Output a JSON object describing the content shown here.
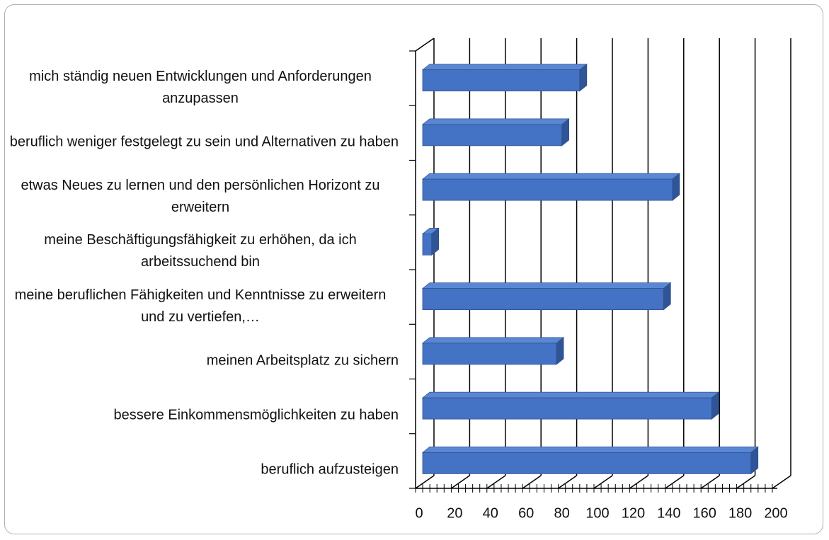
{
  "chart_data": {
    "type": "bar3d_horizontal",
    "categories": [
      "mich ständig neuen Entwicklungen und Anforderungen anzupassen",
      "beruflich weniger festgelegt zu sein und Alternativen zu haben",
      "etwas Neues zu lernen und den persönlichen Horizont zu erweitern",
      "meine Beschäftigungsfähigkeit zu erhöhen, da ich arbeitssuchend bin",
      "meine beruflichen Fähigkeiten und Kenntnisse zu erweitern und zu vertiefen,…",
      "meinen Arbeitsplatz zu sichern",
      "bessere Einkommensmöglichkeiten zu haben",
      "beruflich aufzusteigen"
    ],
    "values": [
      90,
      80,
      142,
      7,
      137,
      77,
      164,
      186
    ],
    "color": "#4472c4",
    "xlim": [
      0,
      200
    ],
    "xticks": [
      0,
      20,
      40,
      60,
      80,
      100,
      120,
      140,
      160,
      180,
      200
    ],
    "grid": true
  }
}
